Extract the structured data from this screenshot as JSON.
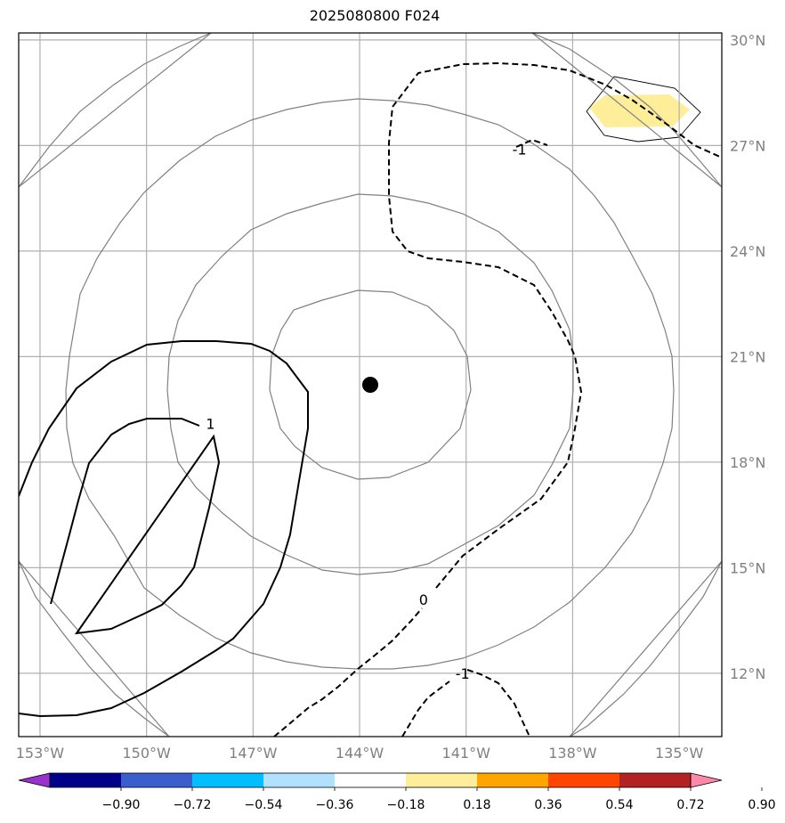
{
  "title": "2025080800 F024",
  "map": {
    "lon_labels": [
      "153°W",
      "150°W",
      "147°W",
      "144°W",
      "141°W",
      "138°W",
      "135°W"
    ],
    "lat_labels": [
      "30°N",
      "27°N",
      "24°N",
      "21°N",
      "18°N",
      "15°N",
      "12°N"
    ],
    "lon_values": [
      -153,
      -150,
      -147,
      -144,
      -141,
      -138,
      -135
    ],
    "lat_values": [
      30,
      27,
      24,
      21,
      18,
      15,
      12
    ],
    "lon_range": [
      -153.6,
      -133.8
    ],
    "lat_range": [
      10.2,
      30.2
    ],
    "center_marker": {
      "lon": -143.7,
      "lat": 20.2
    },
    "contour_labels": [
      {
        "text": "1",
        "lon": -148.2,
        "lat": 19.1
      },
      {
        "text": "0",
        "lon": -142.2,
        "lat": 14.1
      },
      {
        "text": "-1",
        "lon": -139.5,
        "lat": 26.9
      },
      {
        "text": "-1",
        "lon": -141.1,
        "lat": 12.0
      }
    ],
    "colors": {
      "grid": "#b0b0b0",
      "rings": "#808080",
      "contour": "#000000",
      "shade_positive": "#ffee99",
      "marker": "#000000"
    }
  },
  "colorbar": {
    "ticks": [
      "−0.90",
      "−0.72",
      "−0.54",
      "−0.36",
      "−0.18",
      "0.18",
      "0.36",
      "0.54",
      "0.72",
      "0.90"
    ],
    "colors": [
      "#9932cc",
      "#00008b",
      "#3a5fcd",
      "#00bfff",
      "#b0e2ff",
      "#ffffff",
      "#ffee99",
      "#ffa500",
      "#ff4500",
      "#b22222",
      "#ff88aa"
    ]
  }
}
